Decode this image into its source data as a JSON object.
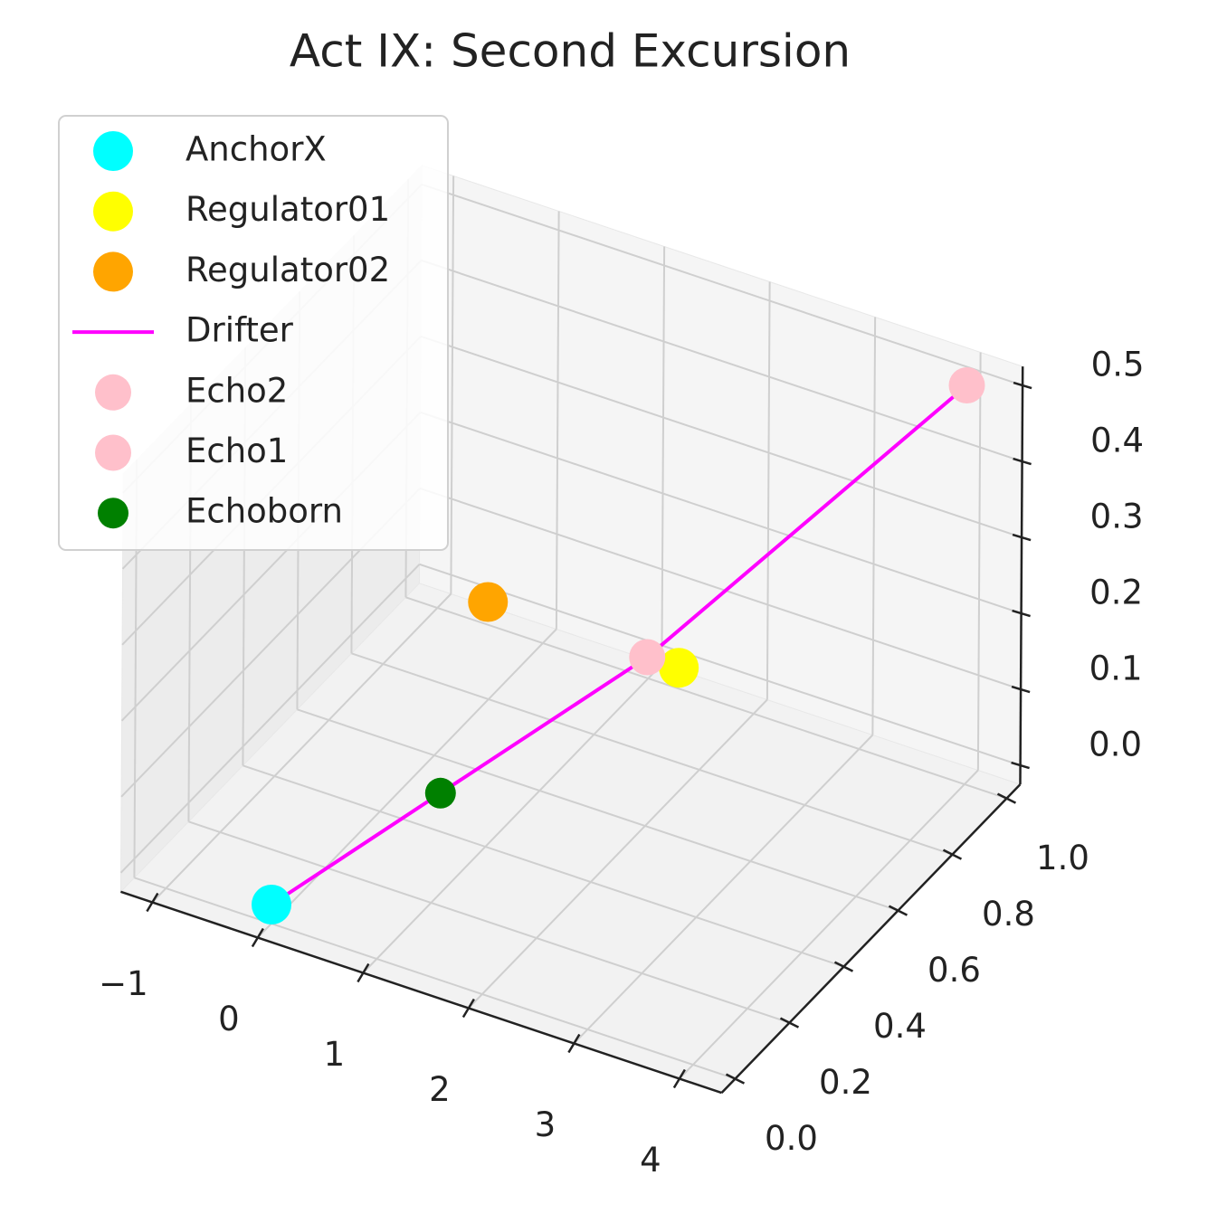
{
  "chart_data": {
    "type": "scatter3d",
    "title": "Act IX: Second Excursion",
    "series": [
      {
        "name": "AnchorX",
        "type": "scatter",
        "color": "#00ffff",
        "marker_size": 22,
        "x": [
          0
        ],
        "y": [
          0
        ],
        "z": [
          0
        ]
      },
      {
        "name": "Regulator01",
        "type": "scatter",
        "color": "#ffff00",
        "marker_size": 22,
        "x": [
          1.8
        ],
        "y": [
          0.8
        ],
        "z": [
          0.1
        ]
      },
      {
        "name": "Regulator02",
        "type": "scatter",
        "color": "#ffa500",
        "marker_size": 22,
        "x": [
          0.5
        ],
        "y": [
          0.6
        ],
        "z": [
          0.2
        ]
      },
      {
        "name": "Drifter",
        "type": "line",
        "color": "#ff00ff",
        "x": [
          0,
          0.7,
          1.5,
          4
        ],
        "y": [
          0,
          0.35,
          0.8,
          1
        ],
        "z": [
          0,
          0.05,
          0.1,
          0.5
        ]
      },
      {
        "name": "Echo2",
        "type": "scatter",
        "color": "#ffc0cb",
        "marker_size": 20,
        "x": [
          4
        ],
        "y": [
          1
        ],
        "z": [
          0.5
        ]
      },
      {
        "name": "Echo1",
        "type": "scatter",
        "color": "#ffc0cb",
        "marker_size": 20,
        "x": [
          1.5
        ],
        "y": [
          0.8
        ],
        "z": [
          0.1
        ]
      },
      {
        "name": "Echoborn",
        "type": "scatter",
        "color": "#008000",
        "marker_size": 17,
        "x": [
          0.7
        ],
        "y": [
          0.35
        ],
        "z": [
          0.05
        ]
      }
    ],
    "xlim": [
      -1.3,
      4.4
    ],
    "ylim": [
      -0.05,
      1.05
    ],
    "zlim": [
      -0.025,
      0.525
    ],
    "xticks": [
      {
        "value": -1,
        "label": "−1"
      },
      0,
      1,
      2,
      3,
      4
    ],
    "yticks": [
      {
        "value": 0,
        "label": "0.0"
      },
      0.2,
      0.4,
      0.6,
      0.8,
      {
        "value": 1,
        "label": "1.0"
      }
    ],
    "zticks": [
      {
        "value": 0,
        "label": "0.0"
      },
      0.1,
      0.2,
      0.3,
      0.4,
      0.5
    ],
    "grid": true,
    "legend": "upper left"
  }
}
